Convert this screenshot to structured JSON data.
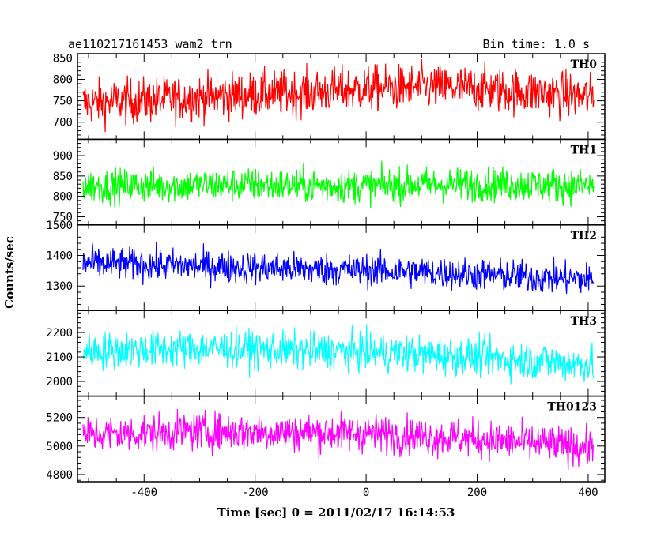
{
  "header": {
    "title": "ae110217161453_wam2_trn",
    "bin_time": "Bin time: 1.0 s"
  },
  "chart_data": {
    "type": "line",
    "xlabel": "Time [sec] 0 = 2011/02/17 16:14:53",
    "ylabel": "Counts/sec",
    "xlim": [
      -520,
      430
    ],
    "xticks": [
      -400,
      -200,
      0,
      200,
      400
    ],
    "x_range": [
      -510,
      410
    ],
    "grid": false,
    "series": [
      {
        "name": "TH0",
        "color": "#ff0000",
        "ylim": [
          660,
          860
        ],
        "yticks": [
          700,
          750,
          800,
          850
        ],
        "points": [
          [
            -510,
            745
          ],
          [
            -400,
            750
          ],
          [
            -300,
            758
          ],
          [
            -200,
            765
          ],
          [
            -100,
            770
          ],
          [
            0,
            778
          ],
          [
            100,
            782
          ],
          [
            200,
            778
          ],
          [
            300,
            770
          ],
          [
            410,
            758
          ]
        ],
        "noise": 38
      },
      {
        "name": "TH1",
        "color": "#00ff00",
        "ylim": [
          730,
          940
        ],
        "yticks": [
          750,
          800,
          850,
          900
        ],
        "points": [
          [
            -510,
            825
          ],
          [
            -400,
            826
          ],
          [
            -300,
            828
          ],
          [
            -200,
            828
          ],
          [
            -100,
            826
          ],
          [
            0,
            826
          ],
          [
            100,
            828
          ],
          [
            200,
            830
          ],
          [
            300,
            828
          ],
          [
            410,
            825
          ]
        ],
        "noise": 30
      },
      {
        "name": "TH2",
        "color": "#0000ff",
        "ylim": [
          1220,
          1500
        ],
        "yticks": [
          1300,
          1400,
          1500
        ],
        "points": [
          [
            -510,
            1375
          ],
          [
            -400,
            1370
          ],
          [
            -300,
            1365
          ],
          [
            -200,
            1360
          ],
          [
            -100,
            1355
          ],
          [
            0,
            1352
          ],
          [
            100,
            1345
          ],
          [
            200,
            1338
          ],
          [
            300,
            1330
          ],
          [
            410,
            1322
          ]
        ],
        "noise": 38
      },
      {
        "name": "TH3",
        "color": "#00ffff",
        "ylim": [
          1940,
          2290
        ],
        "yticks": [
          2000,
          2100,
          2200
        ],
        "points": [
          [
            -510,
            2125
          ],
          [
            -400,
            2130
          ],
          [
            -300,
            2135
          ],
          [
            -200,
            2130
          ],
          [
            -100,
            2125
          ],
          [
            0,
            2120
          ],
          [
            100,
            2110
          ],
          [
            200,
            2100
          ],
          [
            300,
            2085
          ],
          [
            410,
            2070
          ]
        ],
        "noise": 55
      },
      {
        "name": "TH0123",
        "color": "#ff00ff",
        "ylim": [
          4750,
          5350
        ],
        "yticks": [
          4800,
          5000,
          5200
        ],
        "points": [
          [
            -510,
            5080
          ],
          [
            -400,
            5090
          ],
          [
            -300,
            5100
          ],
          [
            -200,
            5100
          ],
          [
            -100,
            5095
          ],
          [
            0,
            5090
          ],
          [
            100,
            5070
          ],
          [
            200,
            5050
          ],
          [
            300,
            5020
          ],
          [
            410,
            4990
          ]
        ],
        "noise": 95
      }
    ]
  }
}
